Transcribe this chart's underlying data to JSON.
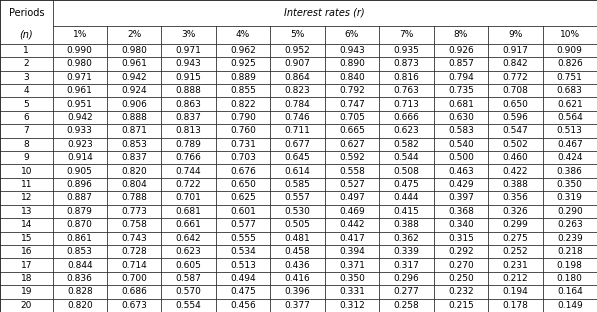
{
  "header_top": "Interest rates (r)",
  "header_left_line1": "Periods",
  "header_left_line2": "(n)",
  "col_headers": [
    "1%",
    "2%",
    "3%",
    "4%",
    "5%",
    "6%",
    "7%",
    "8%",
    "9%",
    "10%"
  ],
  "rows": [
    [
      1,
      0.99,
      0.98,
      0.971,
      0.962,
      0.952,
      0.943,
      0.935,
      0.926,
      0.917,
      0.909
    ],
    [
      2,
      0.98,
      0.961,
      0.943,
      0.925,
      0.907,
      0.89,
      0.873,
      0.857,
      0.842,
      0.826
    ],
    [
      3,
      0.971,
      0.942,
      0.915,
      0.889,
      0.864,
      0.84,
      0.816,
      0.794,
      0.772,
      0.751
    ],
    [
      4,
      0.961,
      0.924,
      0.888,
      0.855,
      0.823,
      0.792,
      0.763,
      0.735,
      0.708,
      0.683
    ],
    [
      5,
      0.951,
      0.906,
      0.863,
      0.822,
      0.784,
      0.747,
      0.713,
      0.681,
      0.65,
      0.621
    ],
    [
      6,
      0.942,
      0.888,
      0.837,
      0.79,
      0.746,
      0.705,
      0.666,
      0.63,
      0.596,
      0.564
    ],
    [
      7,
      0.933,
      0.871,
      0.813,
      0.76,
      0.711,
      0.665,
      0.623,
      0.583,
      0.547,
      0.513
    ],
    [
      8,
      0.923,
      0.853,
      0.789,
      0.731,
      0.677,
      0.627,
      0.582,
      0.54,
      0.502,
      0.467
    ],
    [
      9,
      0.914,
      0.837,
      0.766,
      0.703,
      0.645,
      0.592,
      0.544,
      0.5,
      0.46,
      0.424
    ],
    [
      10,
      0.905,
      0.82,
      0.744,
      0.676,
      0.614,
      0.558,
      0.508,
      0.463,
      0.422,
      0.386
    ],
    [
      11,
      0.896,
      0.804,
      0.722,
      0.65,
      0.585,
      0.527,
      0.475,
      0.429,
      0.388,
      0.35
    ],
    [
      12,
      0.887,
      0.788,
      0.701,
      0.625,
      0.557,
      0.497,
      0.444,
      0.397,
      0.356,
      0.319
    ],
    [
      13,
      0.879,
      0.773,
      0.681,
      0.601,
      0.53,
      0.469,
      0.415,
      0.368,
      0.326,
      0.29
    ],
    [
      14,
      0.87,
      0.758,
      0.661,
      0.577,
      0.505,
      0.442,
      0.388,
      0.34,
      0.299,
      0.263
    ],
    [
      15,
      0.861,
      0.743,
      0.642,
      0.555,
      0.481,
      0.417,
      0.362,
      0.315,
      0.275,
      0.239
    ],
    [
      16,
      0.853,
      0.728,
      0.623,
      0.534,
      0.458,
      0.394,
      0.339,
      0.292,
      0.252,
      0.218
    ],
    [
      17,
      0.844,
      0.714,
      0.605,
      0.513,
      0.436,
      0.371,
      0.317,
      0.27,
      0.231,
      0.198
    ],
    [
      18,
      0.836,
      0.7,
      0.587,
      0.494,
      0.416,
      0.35,
      0.296,
      0.25,
      0.212,
      0.18
    ],
    [
      19,
      0.828,
      0.686,
      0.57,
      0.475,
      0.396,
      0.331,
      0.277,
      0.232,
      0.194,
      0.164
    ],
    [
      20,
      0.82,
      0.673,
      0.554,
      0.456,
      0.377,
      0.312,
      0.258,
      0.215,
      0.178,
      0.149
    ]
  ],
  "bg_color": "#ffffff",
  "text_color": "#000000",
  "border_color": "#000000",
  "font_size": 6.5,
  "header_font_size": 7.0,
  "fig_width": 5.97,
  "fig_height": 3.12,
  "dpi": 100
}
